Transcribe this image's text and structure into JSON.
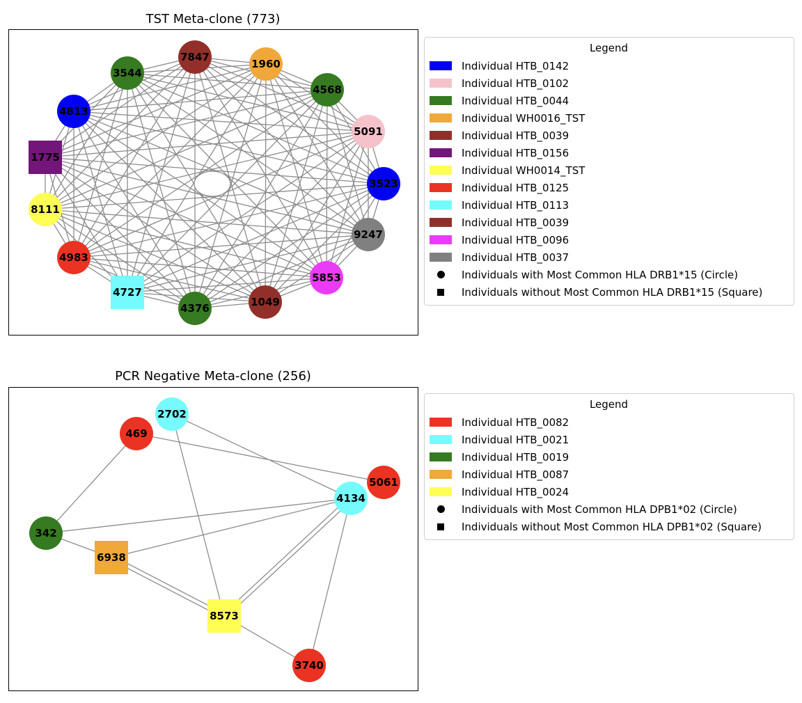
{
  "panels": [
    {
      "title": "TST Meta-clone (773)",
      "legend": {
        "title": "Legend",
        "items": [
          {
            "label": "Individual HTB_0142",
            "color": "#0000f5"
          },
          {
            "label": "Individual HTB_0102",
            "color": "#f5c2cb"
          },
          {
            "label": "Individual HTB_0044",
            "color": "#367a21"
          },
          {
            "label": "Individual WH0016_TST",
            "color": "#f0a83b"
          },
          {
            "label": "Individual HTB_0039",
            "color": "#932f2a"
          },
          {
            "label": "Individual HTB_0156",
            "color": "#73167a"
          },
          {
            "label": "Individual WH0014_TST",
            "color": "#fefe54"
          },
          {
            "label": "Individual HTB_0125",
            "color": "#ea3323"
          },
          {
            "label": "Individual HTB_0113",
            "color": "#75fbfd"
          },
          {
            "label": "Individual HTB_0039",
            "color": "#932f2a"
          },
          {
            "label": "Individual HTB_0096",
            "color": "#ea3cf7"
          },
          {
            "label": "Individual HTB_0037",
            "color": "#808080"
          }
        ],
        "shape_items": [
          {
            "label": "Individuals with Most Common HLA DRB1*15 (Circle)",
            "shape": "circle"
          },
          {
            "label": "Individuals without Most Common HLA DRB1*15 (Square)",
            "shape": "square"
          }
        ]
      },
      "nodes": [
        {
          "id": "7847",
          "color": "#932f2a",
          "shape": "circle"
        },
        {
          "id": "1960",
          "color": "#f0a83b",
          "shape": "circle"
        },
        {
          "id": "4568",
          "color": "#367a21",
          "shape": "circle"
        },
        {
          "id": "5091",
          "color": "#f5c2cb",
          "shape": "circle"
        },
        {
          "id": "3523",
          "color": "#0000f5",
          "shape": "circle"
        },
        {
          "id": "9247",
          "color": "#808080",
          "shape": "circle"
        },
        {
          "id": "5853",
          "color": "#ea3cf7",
          "shape": "circle"
        },
        {
          "id": "1049",
          "color": "#932f2a",
          "shape": "circle"
        },
        {
          "id": "4376",
          "color": "#367a21",
          "shape": "circle"
        },
        {
          "id": "4727",
          "color": "#75fbfd",
          "shape": "square"
        },
        {
          "id": "4983",
          "color": "#ea3323",
          "shape": "circle"
        },
        {
          "id": "8111",
          "color": "#fefe54",
          "shape": "circle"
        },
        {
          "id": "1775",
          "color": "#73167a",
          "shape": "square"
        },
        {
          "id": "4813",
          "color": "#0000f5",
          "shape": "circle"
        },
        {
          "id": "3544",
          "color": "#367a21",
          "shape": "circle"
        }
      ],
      "complete_graph": true,
      "self_loops": [
        "4376"
      ]
    },
    {
      "title": "PCR Negative Meta-clone (256)",
      "legend": {
        "title": "Legend",
        "items": [
          {
            "label": "Individual HTB_0082",
            "color": "#ea3323"
          },
          {
            "label": "Individual HTB_0021",
            "color": "#75fbfd"
          },
          {
            "label": "Individual HTB_0019",
            "color": "#367a21"
          },
          {
            "label": "Individual HTB_0087",
            "color": "#f0a83b"
          },
          {
            "label": "Individual HTB_0024",
            "color": "#fefe54"
          }
        ],
        "shape_items": [
          {
            "label": "Individuals with Most Common HLA DPB1*02 (Circle)",
            "shape": "circle"
          },
          {
            "label": "Individuals without Most Common HLA DPB1*02 (Square)",
            "shape": "square"
          }
        ]
      },
      "nodes": [
        {
          "id": "2702",
          "color": "#75fbfd",
          "shape": "circle"
        },
        {
          "id": "469",
          "color": "#ea3323",
          "shape": "circle"
        },
        {
          "id": "5061",
          "color": "#ea3323",
          "shape": "circle"
        },
        {
          "id": "4134",
          "color": "#75fbfd",
          "shape": "circle"
        },
        {
          "id": "342",
          "color": "#367a21",
          "shape": "circle"
        },
        {
          "id": "6938",
          "color": "#f0a83b",
          "shape": "square"
        },
        {
          "id": "8573",
          "color": "#fefe54",
          "shape": "square"
        },
        {
          "id": "3740",
          "color": "#ea3323",
          "shape": "circle"
        }
      ],
      "edges": [
        [
          "2702",
          "4134"
        ],
        [
          "2702",
          "8573"
        ],
        [
          "469",
          "5061"
        ],
        [
          "469",
          "342"
        ],
        [
          "342",
          "4134"
        ],
        [
          "342",
          "6938"
        ],
        [
          "6938",
          "8573"
        ],
        [
          "6938",
          "4134"
        ],
        [
          "8573",
          "4134"
        ],
        [
          "8573",
          "3740"
        ],
        [
          "4134",
          "3740"
        ]
      ],
      "multi_edges": [
        [
          "8573",
          "4134"
        ],
        [
          "6938",
          "8573"
        ]
      ]
    }
  ]
}
